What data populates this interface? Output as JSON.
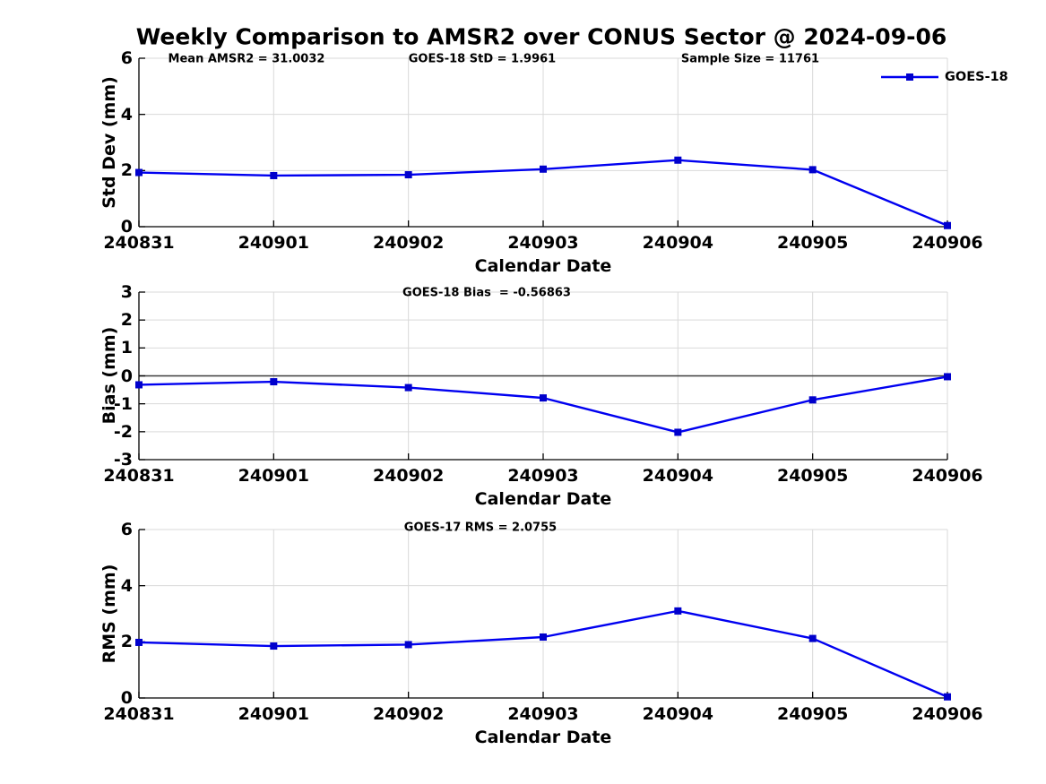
{
  "title": "Weekly Comparison to AMSR2 over CONUS Sector @ 2024-09-06",
  "colors": {
    "line": "#0000f0",
    "marker": "#0000cc",
    "grid": "#d9d9d9",
    "axis": "#000000",
    "zero_line": "#3c3c3c",
    "text": "#000000"
  },
  "legend": {
    "label": "GOES-18",
    "position": "top-right"
  },
  "chart_data": [
    {
      "type": "line",
      "name": "std-dev-vs-date",
      "categories": [
        "240831",
        "240901",
        "240902",
        "240903",
        "240904",
        "240905",
        "240906"
      ],
      "series": [
        {
          "name": "GOES-18",
          "values": [
            1.93,
            1.82,
            1.85,
            2.05,
            2.37,
            2.03,
            0.04
          ]
        }
      ],
      "ylabel": "Std Dev (mm)",
      "xlabel": "Calendar Date",
      "ylim": [
        0,
        6
      ],
      "yticks": [
        0,
        2,
        4,
        6
      ],
      "grid": true,
      "legend_position": "top-right",
      "annotations": [
        "Mean AMSR2 = 31.0032",
        "GOES-18 StD = 1.9961",
        "Sample Size = 11761"
      ]
    },
    {
      "type": "line",
      "name": "bias-vs-date",
      "categories": [
        "240831",
        "240901",
        "240902",
        "240903",
        "240904",
        "240905",
        "240906"
      ],
      "series": [
        {
          "name": "GOES-18",
          "values": [
            -0.32,
            -0.21,
            -0.42,
            -0.79,
            -2.02,
            -0.86,
            -0.03
          ]
        }
      ],
      "ylabel": "Bias (mm)",
      "xlabel": "Calendar Date",
      "ylim": [
        -3,
        3
      ],
      "yticks": [
        -3,
        -2,
        -1,
        0,
        1,
        2,
        3
      ],
      "grid": true,
      "zero_line": true,
      "annotations": [
        "GOES-18 Bias  = -0.56863"
      ]
    },
    {
      "type": "line",
      "name": "rms-vs-date",
      "categories": [
        "240831",
        "240901",
        "240902",
        "240903",
        "240904",
        "240905",
        "240906"
      ],
      "series": [
        {
          "name": "GOES-18",
          "values": [
            1.98,
            1.85,
            1.9,
            2.17,
            3.1,
            2.12,
            0.04
          ]
        }
      ],
      "ylabel": "RMS (mm)",
      "xlabel": "Calendar Date",
      "ylim": [
        0,
        6
      ],
      "yticks": [
        0,
        2,
        4,
        6
      ],
      "grid": true,
      "annotations": [
        "GOES-17 RMS = 2.0755"
      ]
    }
  ]
}
